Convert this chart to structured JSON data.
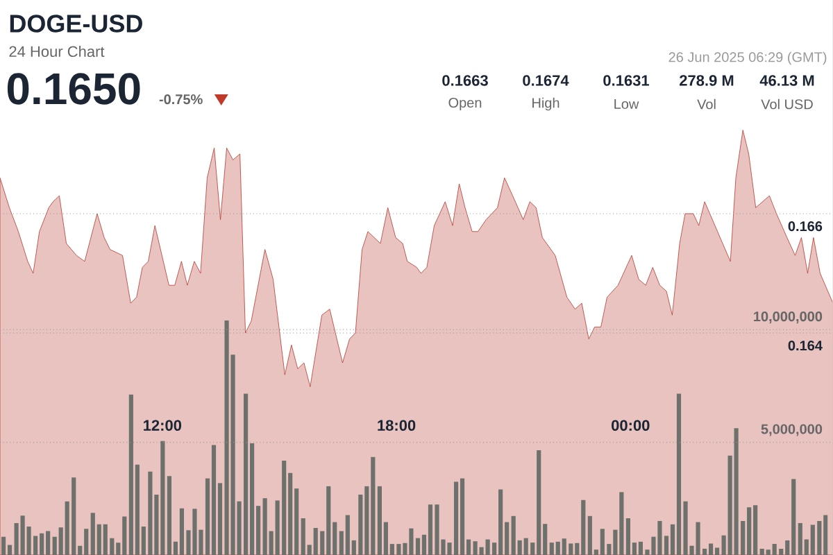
{
  "chart_data": {
    "type": "area",
    "title": "DOGE-USD",
    "subtitle": "24 Hour Chart",
    "annotations": [
      "0.1650",
      "-0.75%",
      "26 Jun 2025 06:29 (GMT)",
      "0.1663",
      "Open",
      "0.1674",
      "High",
      "0.1631",
      "Low",
      "278.9 M",
      "Vol",
      "46.13 M",
      "Vol USD"
    ],
    "xlim": [
      7.84,
      29.19
    ],
    "xticks": [
      {
        "value": 12,
        "label": "12:00"
      },
      {
        "value": 18,
        "label": "18:00"
      },
      {
        "value": 24,
        "label": "00:00"
      }
    ],
    "ylim": [
      0.16028,
      0.16958
    ],
    "yticks": [
      {
        "value": 0.164,
        "label": "0.164"
      },
      {
        "value": 0.166,
        "label": "0.166"
      }
    ],
    "y2lim": [
      0,
      24630000
    ],
    "y2ticks": [
      {
        "value": 5000000,
        "label": "5,000,000"
      },
      {
        "value": 10000000,
        "label": "10,000,000"
      }
    ],
    "grid": "y",
    "series": [
      {
        "color": "#b5372d",
        "x": [
          7.84,
          8.08,
          8.31,
          8.55,
          8.69,
          8.85,
          9.09,
          9.2,
          9.36,
          9.54,
          9.8,
          10.01,
          10.33,
          10.51,
          10.66,
          10.98,
          11.19,
          11.34,
          11.49,
          11.64,
          11.81,
          12.17,
          12.32,
          12.49,
          12.64,
          12.82,
          12.98,
          13.15,
          13.33,
          13.49,
          13.65,
          13.81,
          13.99,
          14.13,
          14.28,
          14.63,
          14.84,
          15.14,
          15.31,
          15.47,
          15.63,
          15.79,
          16.09,
          16.29,
          16.62,
          16.8,
          16.95,
          17.12,
          17.27,
          17.59,
          17.78,
          17.98,
          18.16,
          18.28,
          18.52,
          18.63,
          18.78,
          18.97,
          19.25,
          19.44,
          19.61,
          19.76,
          19.94,
          20.09,
          20.3,
          20.59,
          20.77,
          20.98,
          21.25,
          21.42,
          21.58,
          21.74,
          22.07,
          22.37,
          22.58,
          22.75,
          22.93,
          23.08,
          23.24,
          23.4,
          23.68,
          24.03,
          24.21,
          24.39,
          24.57,
          24.75,
          24.92,
          25.07,
          25.26,
          25.4,
          25.61,
          25.75,
          25.9,
          26.23,
          26.56,
          26.7,
          26.88,
          27.03,
          27.21,
          27.56,
          27.74,
          28.01,
          28.22,
          28.38,
          28.54,
          28.69,
          28.86,
          29.19
        ],
        "values": [
          0.1666,
          0.1661,
          0.1657,
          0.1652,
          0.165,
          0.1657,
          0.1661,
          0.1662,
          0.1663,
          0.1655,
          0.1653,
          0.1652,
          0.166,
          0.1656,
          0.1654,
          0.1653,
          0.1645,
          0.1646,
          0.1651,
          0.1652,
          0.1658,
          0.1648,
          0.1648,
          0.1652,
          0.1648,
          0.1652,
          0.165,
          0.1666,
          0.1671,
          0.1659,
          0.1671,
          0.1669,
          0.167,
          0.164,
          0.1642,
          0.1654,
          0.1649,
          0.1633,
          0.1638,
          0.1634,
          0.1635,
          0.1631,
          0.1643,
          0.1644,
          0.1635,
          0.1639,
          0.164,
          0.1654,
          0.1657,
          0.1655,
          0.1661,
          0.1656,
          0.1655,
          0.1652,
          0.1651,
          0.165,
          0.1651,
          0.1658,
          0.1662,
          0.1658,
          0.1665,
          0.1661,
          0.1657,
          0.1657,
          0.1659,
          0.1661,
          0.1666,
          0.1663,
          0.1659,
          0.1662,
          0.1661,
          0.1656,
          0.1653,
          0.1646,
          0.1644,
          0.1645,
          0.1639,
          0.1641,
          0.1641,
          0.1646,
          0.1648,
          0.1653,
          0.1649,
          0.1648,
          0.1651,
          0.1648,
          0.1647,
          0.1643,
          0.1655,
          0.166,
          0.166,
          0.1658,
          0.1662,
          0.1657,
          0.1652,
          0.1666,
          0.1674,
          0.167,
          0.1661,
          0.1663,
          0.166,
          0.1656,
          0.1653,
          0.1656,
          0.165,
          0.1656,
          0.165,
          0.1645
        ]
      },
      {
        "type": "bar",
        "axis": "y2",
        "color": "#6e716b",
        "x": [
          7.93,
          8.09,
          8.26,
          8.42,
          8.58,
          8.75,
          8.91,
          9.07,
          9.24,
          9.4,
          9.56,
          9.73,
          9.89,
          10.05,
          10.22,
          10.38,
          10.54,
          10.71,
          10.87,
          11.03,
          11.2,
          11.36,
          11.52,
          11.69,
          11.85,
          12.01,
          12.18,
          12.34,
          12.5,
          12.67,
          12.83,
          12.99,
          13.16,
          13.32,
          13.48,
          13.65,
          13.81,
          13.97,
          14.14,
          14.3,
          14.46,
          14.63,
          14.79,
          14.95,
          15.12,
          15.28,
          15.44,
          15.61,
          15.77,
          15.93,
          16.1,
          16.26,
          16.42,
          16.59,
          16.75,
          16.91,
          17.08,
          17.24,
          17.4,
          17.57,
          17.73,
          17.89,
          18.06,
          18.22,
          18.38,
          18.55,
          18.71,
          18.87,
          19.04,
          19.2,
          19.36,
          19.53,
          19.69,
          19.85,
          20.02,
          20.18,
          20.34,
          20.51,
          20.67,
          20.83,
          21.0,
          21.16,
          21.32,
          21.49,
          21.65,
          21.81,
          21.98,
          22.14,
          22.3,
          22.47,
          22.63,
          22.79,
          22.96,
          23.12,
          23.28,
          23.45,
          23.61,
          23.77,
          23.94,
          24.1,
          24.26,
          24.43,
          24.59,
          24.75,
          24.92,
          25.08,
          25.24,
          25.41,
          25.57,
          25.73,
          25.9,
          26.06,
          26.22,
          26.39,
          26.55,
          26.71,
          26.88,
          27.04,
          27.2,
          27.37,
          27.53,
          27.69,
          27.86,
          28.02,
          28.18,
          28.35,
          28.51,
          28.67,
          28.84,
          29.0
        ],
        "values": [
          810000,
          450000,
          1420000,
          1750000,
          1260000,
          850000,
          960000,
          1060000,
          810000,
          1220000,
          2380000,
          3440000,
          410000,
          1160000,
          1870000,
          1360000,
          1360000,
          750000,
          550000,
          1710000,
          7120000,
          4010000,
          1260000,
          3700000,
          2680000,
          5060000,
          3500000,
          590000,
          2070000,
          1100000,
          2050000,
          1120000,
          3400000,
          4880000,
          3190000,
          10410000,
          8890000,
          2380000,
          7160000,
          4960000,
          2180000,
          2520000,
          1060000,
          2420000,
          4190000,
          3640000,
          2950000,
          1630000,
          450000,
          1200000,
          1060000,
          3050000,
          1460000,
          1060000,
          1770000,
          650000,
          2680000,
          3050000,
          4350000,
          3050000,
          1460000,
          490000,
          490000,
          530000,
          1180000,
          750000,
          900000,
          2240000,
          2240000,
          690000,
          550000,
          3250000,
          3400000,
          690000,
          610000,
          350000,
          690000,
          550000,
          2910000,
          1460000,
          1730000,
          650000,
          750000,
          550000,
          4650000,
          1380000,
          550000,
          590000,
          730000,
          510000,
          530000,
          2440000,
          1730000,
          240000,
          1160000,
          490000,
          1120000,
          2790000,
          1630000,
          550000,
          590000,
          240000,
          810000,
          1510000,
          850000,
          1360000,
          7160000,
          2380000,
          410000,
          1460000,
          280000,
          510000,
          320000,
          870000,
          4410000,
          5630000,
          1510000,
          2120000,
          2210000,
          280000,
          240000,
          490000,
          280000,
          650000,
          3370000,
          1420000,
          690000,
          1340000,
          1510000,
          1770000
        ]
      }
    ]
  }
}
